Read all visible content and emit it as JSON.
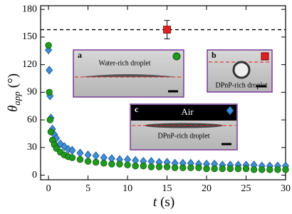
{
  "chart_data": {
    "type": "scatter",
    "xlabel": {
      "symbol": "t",
      "unit": "(s)"
    },
    "ylabel": {
      "symbol": "θ",
      "subscript": "app",
      "unit": "(°)"
    },
    "xlim": [
      -1,
      30
    ],
    "ylim": [
      -5,
      184
    ],
    "xticks": [
      0,
      5,
      10,
      15,
      20,
      25,
      30
    ],
    "yticks": [
      0,
      30,
      60,
      90,
      120,
      150,
      180
    ],
    "reference_line": 158,
    "series": [
      {
        "marker": "diamond",
        "color": "#3d8fd6",
        "x": [
          0,
          0.1,
          0.2,
          0.3,
          0.5,
          0.75,
          1,
          1.5,
          2,
          2.5,
          3,
          4,
          5,
          6,
          7,
          8,
          9,
          10,
          11,
          12,
          13,
          14,
          15,
          16,
          17,
          18,
          19,
          20,
          21,
          22,
          23,
          24,
          25,
          26,
          27,
          28,
          29,
          30
        ],
        "values": [
          136,
          114,
          86,
          62,
          50,
          44,
          40,
          34,
          31,
          28,
          27,
          24,
          22,
          21,
          19,
          18,
          17,
          17,
          16,
          15,
          15,
          14,
          14,
          13,
          13,
          13,
          12,
          12,
          12,
          11,
          11,
          11,
          11,
          11,
          10,
          10,
          10,
          10
        ]
      },
      {
        "marker": "circle",
        "color": "#1f9a1f",
        "x": [
          0,
          0.1,
          0.2,
          0.3,
          0.5,
          0.75,
          1,
          1.5,
          2,
          2.5,
          3,
          4,
          5,
          6,
          7,
          8,
          9,
          10,
          11,
          12,
          13,
          14,
          15,
          16,
          17,
          18,
          19,
          20,
          21,
          22,
          23,
          24,
          25,
          26,
          27,
          28,
          29,
          30
        ],
        "values": [
          141,
          90,
          60,
          47,
          38,
          33,
          29,
          25,
          22,
          20,
          19,
          17,
          15,
          14,
          13,
          12,
          12,
          11,
          10,
          10,
          9,
          9,
          9,
          8,
          8,
          8,
          8,
          7,
          7,
          7,
          7,
          7,
          7,
          6,
          6,
          6,
          6,
          6
        ]
      },
      {
        "marker": "square",
        "color": "#e02020",
        "x": [
          15
        ],
        "values": [
          158
        ],
        "errors": [
          10
        ]
      }
    ],
    "insets": [
      {
        "label": "a",
        "caption": "Water-rich droplet"
      },
      {
        "label": "b",
        "caption": "DPnP-rich droplet"
      },
      {
        "label": "c",
        "top_text": "Air",
        "caption": "DPnP-rich droplet"
      }
    ]
  }
}
